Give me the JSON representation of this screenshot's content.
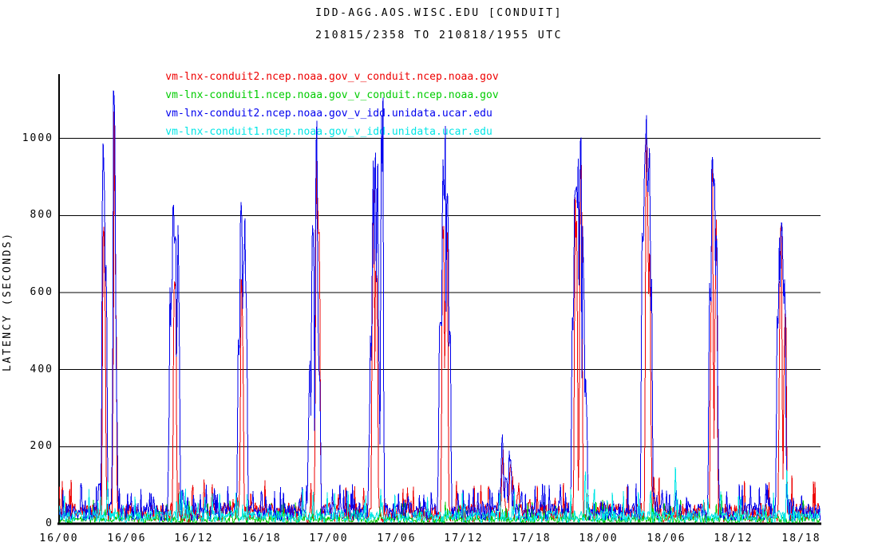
{
  "chart_data": {
    "type": "line",
    "title": "IDD-AGG.AOS.WISC.EDU [CONDUIT]",
    "subtitle": "210815/2358 TO 210818/1955 UTC",
    "ylabel": "LATENCY (SECONDS)",
    "xlabel": "",
    "background": "#ffffff",
    "axis_color": "#000000",
    "grid": "horizontal",
    "legend_position": "top-left",
    "ylim": [
      0,
      1167
    ],
    "yticks": [
      0,
      200,
      400,
      600,
      800,
      1000
    ],
    "x_range_hours": [
      0,
      67.7
    ],
    "xticks": [
      {
        "hour": 0,
        "label": "16/00"
      },
      {
        "hour": 6,
        "label": "16/06"
      },
      {
        "hour": 12,
        "label": "16/12"
      },
      {
        "hour": 18,
        "label": "16/18"
      },
      {
        "hour": 24,
        "label": "17/00"
      },
      {
        "hour": 30,
        "label": "17/06"
      },
      {
        "hour": 36,
        "label": "17/12"
      },
      {
        "hour": 42,
        "label": "17/18"
      },
      {
        "hour": 48,
        "label": "18/00"
      },
      {
        "hour": 54,
        "label": "18/06"
      },
      {
        "hour": 60,
        "label": "18/12"
      },
      {
        "hour": 66,
        "label": "18/18"
      }
    ],
    "series": [
      {
        "name": "vm-lnx-conduit2.ncep.noaa.gov_v_conduit.ncep.noaa.gov",
        "color": "#ee0000",
        "baseline": {
          "min": 4,
          "typ": 55,
          "max": 130,
          "burst_p": 0.06
        },
        "spikes": [
          [
            4.0,
            820
          ],
          [
            4.95,
            1100
          ],
          [
            10.3,
            700
          ],
          [
            12.9,
            125,
            0.1
          ],
          [
            16.25,
            650
          ],
          [
            22.92,
            980
          ],
          [
            23.08,
            830
          ],
          [
            27.95,
            900
          ],
          [
            28.2,
            750
          ],
          [
            34.15,
            880
          ],
          [
            34.45,
            830
          ],
          [
            38.2,
            100,
            0.1
          ],
          [
            39.45,
            200
          ],
          [
            40.15,
            170
          ],
          [
            40.8,
            80,
            0.1
          ],
          [
            45.95,
            920
          ],
          [
            46.4,
            1000
          ],
          [
            47.0,
            105,
            0.1
          ],
          [
            52.27,
            1140
          ],
          [
            52.5,
            760
          ],
          [
            58.05,
            990
          ],
          [
            58.4,
            800
          ],
          [
            64.15,
            800
          ],
          [
            64.55,
            620
          ]
        ]
      },
      {
        "name": "vm-lnx-conduit1.ncep.noaa.gov_v_conduit.ncep.noaa.gov",
        "color": "#00cc00",
        "baseline": {
          "min": 2,
          "typ": 20,
          "max": 62,
          "burst_p": 0.07
        },
        "spikes": [
          [
            30.5,
            60,
            0.1
          ],
          [
            53.8,
            60,
            0.1
          ],
          [
            58.9,
            85,
            0.1
          ],
          [
            66.8,
            55,
            0.1
          ]
        ]
      },
      {
        "name": "vm-lnx-conduit2.ncep.noaa.gov_v_idd.unidata.ucar.edu",
        "color": "#0000ee",
        "baseline": {
          "min": 8,
          "typ": 55,
          "max": 105,
          "burst_p": 0.12
        },
        "spikes": [
          [
            3.6,
            120
          ],
          [
            3.95,
            1020
          ],
          [
            4.15,
            760
          ],
          [
            4.9,
            1130
          ],
          [
            5.05,
            400
          ],
          [
            9.9,
            640
          ],
          [
            10.15,
            975
          ],
          [
            10.35,
            850
          ],
          [
            10.6,
            790
          ],
          [
            16.0,
            520
          ],
          [
            16.2,
            930
          ],
          [
            16.45,
            800
          ],
          [
            16.6,
            700
          ],
          [
            22.3,
            480
          ],
          [
            22.55,
            860
          ],
          [
            22.9,
            1140
          ],
          [
            23.1,
            500
          ],
          [
            27.7,
            500
          ],
          [
            27.9,
            950
          ],
          [
            28.1,
            1030
          ],
          [
            28.3,
            980
          ],
          [
            28.72,
            1165
          ],
          [
            33.9,
            600
          ],
          [
            34.1,
            950
          ],
          [
            34.3,
            1045
          ],
          [
            34.55,
            900
          ],
          [
            34.72,
            520
          ],
          [
            39.4,
            240
          ],
          [
            39.75,
            120
          ],
          [
            40.1,
            205
          ],
          [
            40.45,
            80
          ],
          [
            45.7,
            600
          ],
          [
            45.9,
            880
          ],
          [
            46.1,
            950
          ],
          [
            46.35,
            1005
          ],
          [
            46.6,
            800
          ],
          [
            46.85,
            380
          ],
          [
            51.9,
            760
          ],
          [
            52.1,
            1000
          ],
          [
            52.25,
            1135
          ],
          [
            52.45,
            1015
          ],
          [
            52.62,
            700
          ],
          [
            57.9,
            700
          ],
          [
            58.1,
            960
          ],
          [
            58.25,
            1010
          ],
          [
            58.45,
            850
          ],
          [
            63.9,
            600
          ],
          [
            64.1,
            750
          ],
          [
            64.3,
            810
          ],
          [
            64.5,
            650
          ]
        ]
      },
      {
        "name": "vm-lnx-conduit1.ncep.noaa.gov_v_idd.unidata.ucar.edu",
        "color": "#00e6e6",
        "baseline": {
          "min": 3,
          "typ": 35,
          "max": 92,
          "burst_p": 0.06
        },
        "spikes": [
          [
            4.3,
            115,
            0.1
          ],
          [
            10.7,
            85,
            0.1
          ],
          [
            28.6,
            90,
            0.1
          ],
          [
            39.2,
            90,
            0.1
          ],
          [
            46.8,
            150,
            0.12
          ],
          [
            52.6,
            100,
            0.1
          ],
          [
            54.8,
            170,
            0.1
          ],
          [
            58.8,
            95,
            0.1
          ],
          [
            64.7,
            165,
            0.12
          ]
        ]
      }
    ]
  }
}
